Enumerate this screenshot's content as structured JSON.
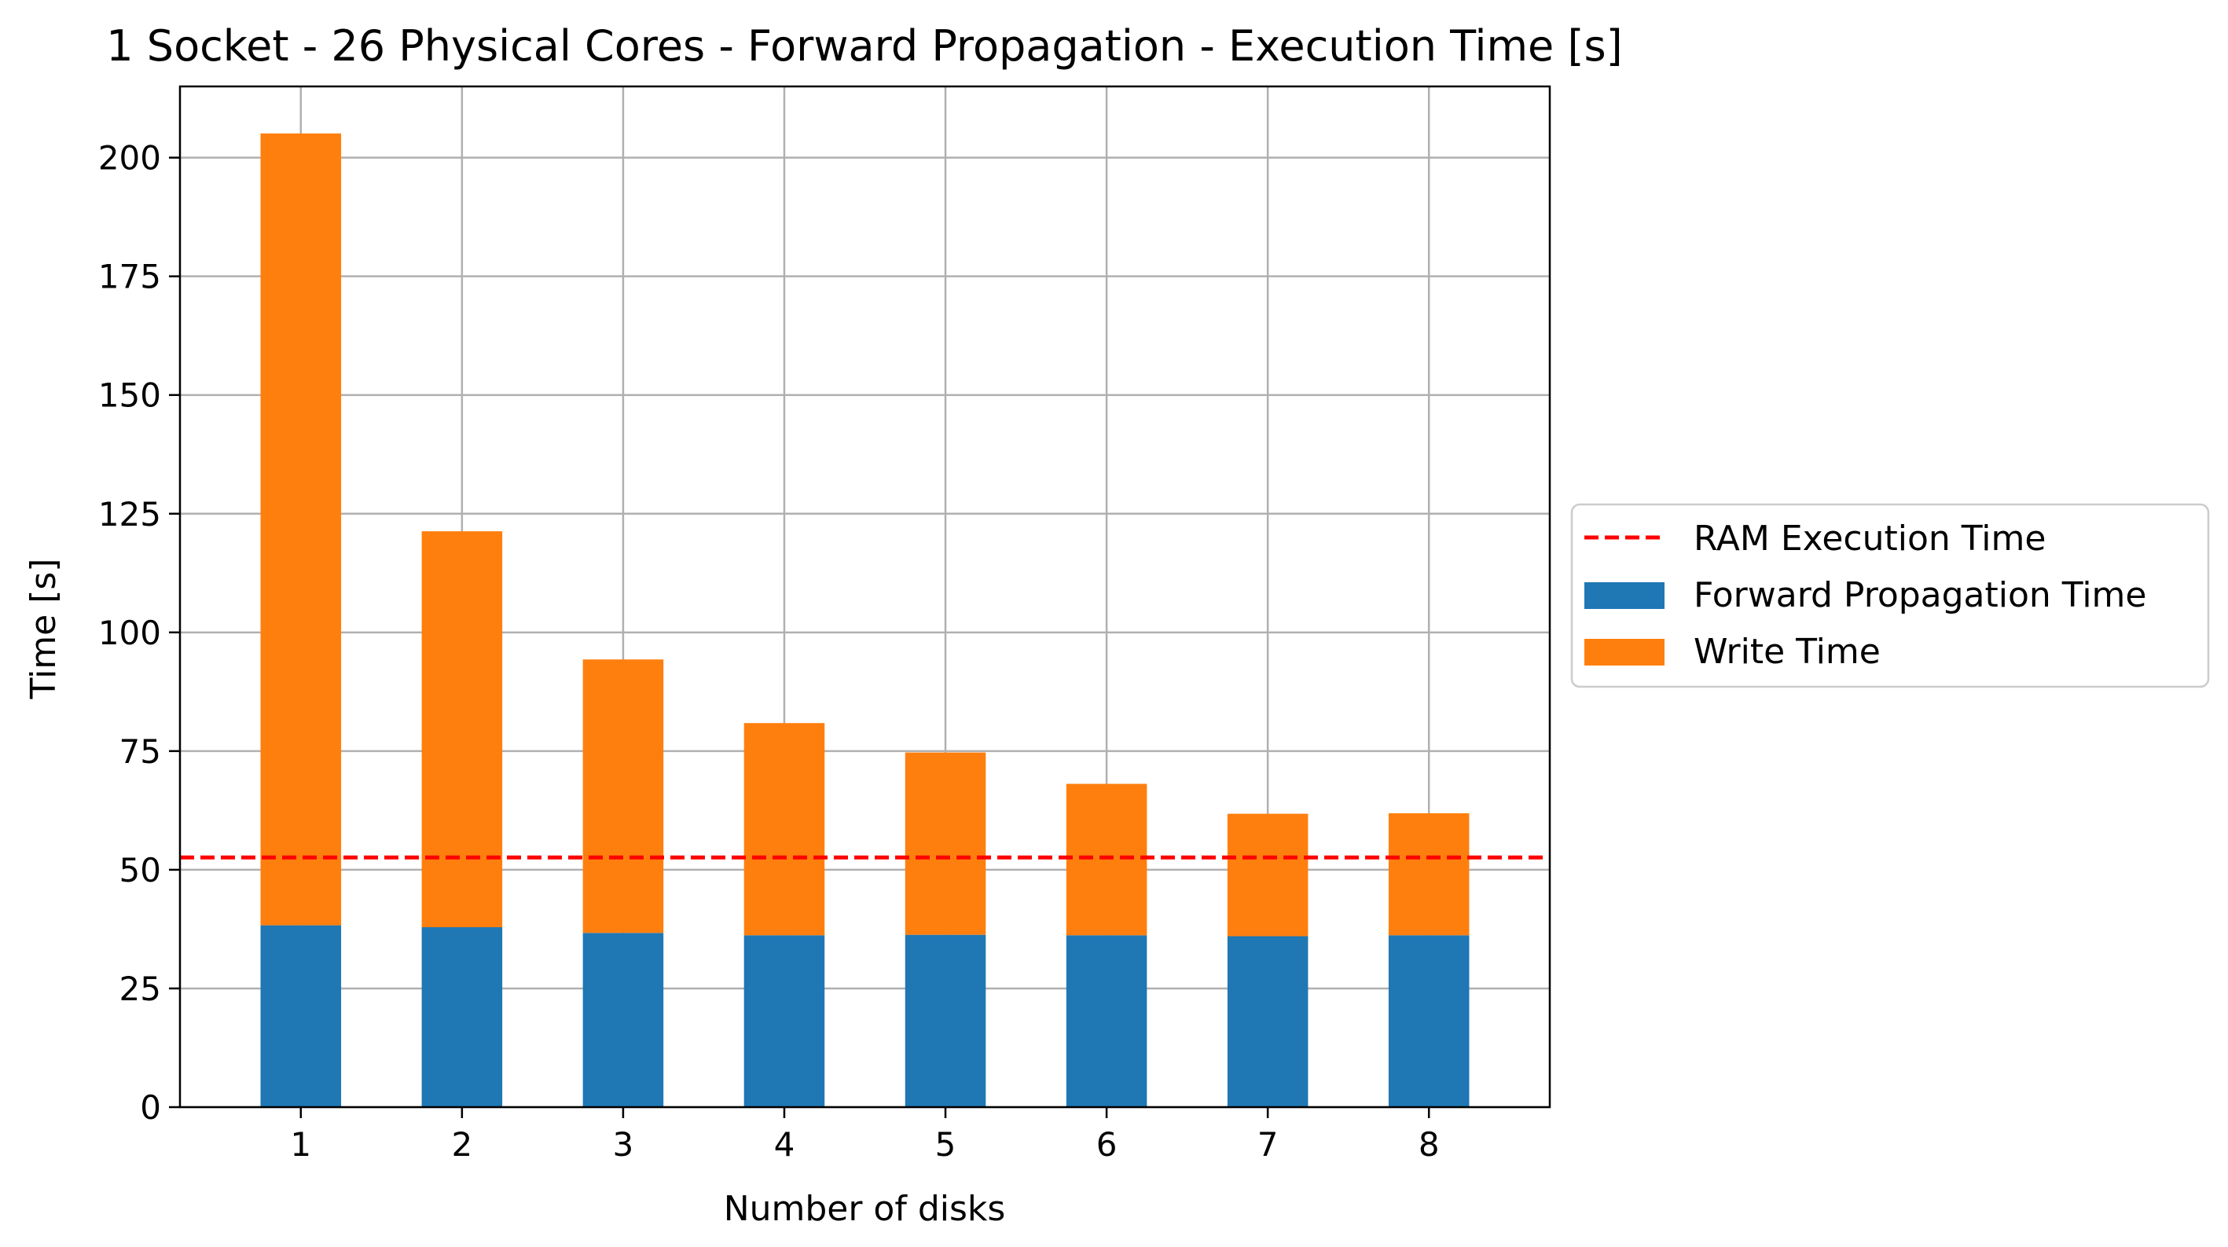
{
  "chart_data": {
    "type": "bar",
    "stacked": true,
    "title": "1 Socket - 26 Physical Cores - Forward Propagation - Execution Time [s]",
    "xlabel": "Number of disks",
    "ylabel": "Time [s]",
    "categories": [
      "1",
      "2",
      "3",
      "4",
      "5",
      "6",
      "7",
      "8"
    ],
    "series": [
      {
        "name": "Forward Propagation Time",
        "color": "#1f77b4",
        "values": [
          38.3,
          37.9,
          36.7,
          36.2,
          36.3,
          36.2,
          36.0,
          36.2
        ]
      },
      {
        "name": "Write Time",
        "color": "#ff7f0e",
        "values": [
          166.8,
          83.4,
          57.6,
          44.7,
          38.4,
          31.9,
          25.8,
          25.7
        ]
      }
    ],
    "reference_line": {
      "name": "RAM Execution Time",
      "value": 52.6,
      "color": "#ff0000",
      "style": "dashed"
    },
    "ylim": [
      0,
      215
    ],
    "yticks": [
      "0",
      "25",
      "50",
      "75",
      "100",
      "125",
      "150",
      "175",
      "200"
    ],
    "grid": true,
    "legend_position": "center-right-outside"
  }
}
